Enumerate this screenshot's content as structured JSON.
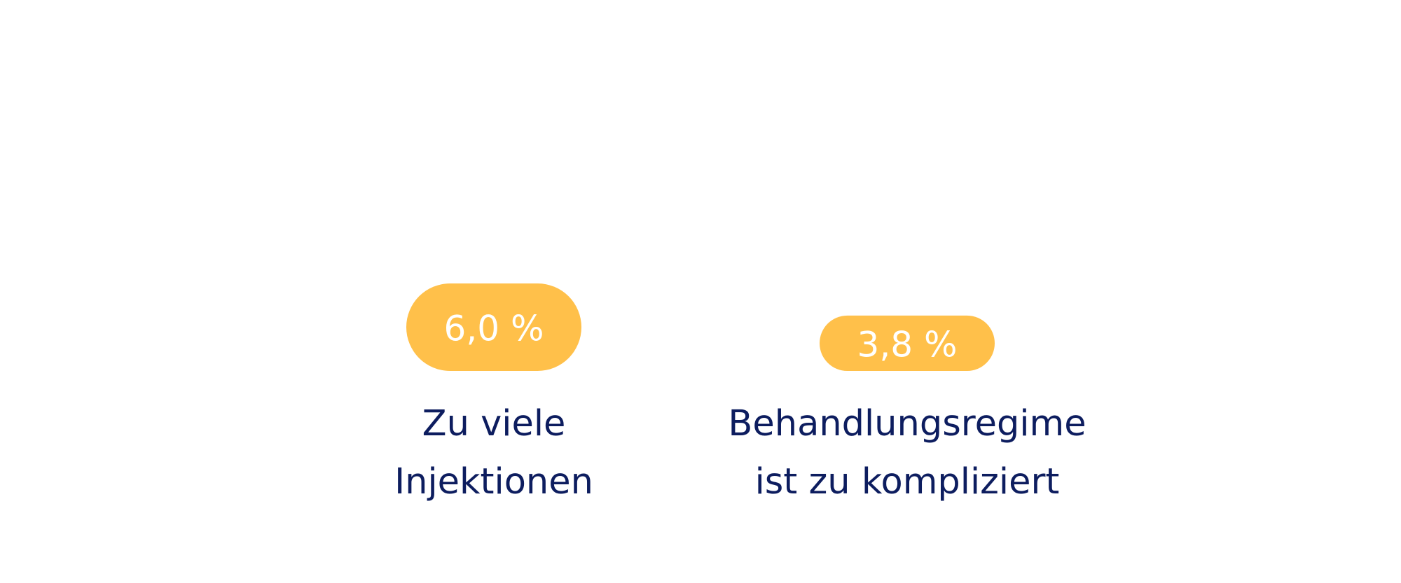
{
  "chart_data": {
    "type": "bar",
    "categories": [
      [
        "Zu viele",
        "Injektionen"
      ],
      [
        "Behandlungsregime",
        "ist zu kompliziert"
      ]
    ],
    "values": [
      6.0,
      3.8
    ],
    "data_labels": [
      "6,0 %",
      "3,8 %"
    ],
    "title": "",
    "xlabel": "",
    "ylabel": "",
    "ylim": [
      0,
      6.0
    ],
    "grid": false,
    "legend": "none",
    "bar_color": "#ffc04a",
    "label_color": "#0d1d5f"
  }
}
